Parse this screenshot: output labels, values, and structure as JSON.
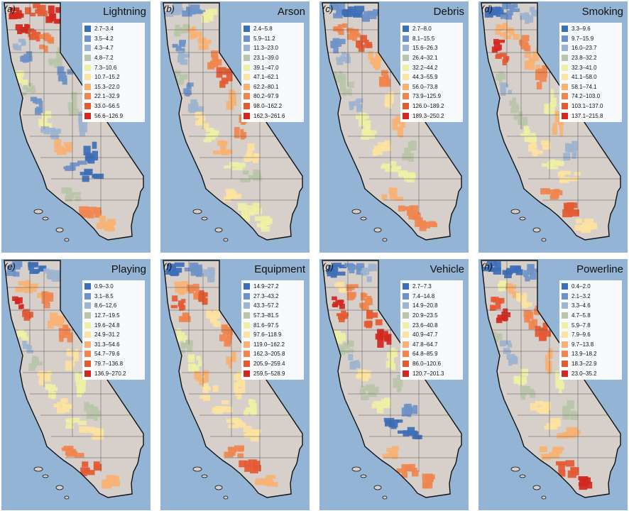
{
  "palette": [
    "#3d6fb8",
    "#6e93c8",
    "#9db4cf",
    "#b9c6a9",
    "#eef0a6",
    "#fde3a0",
    "#f7b273",
    "#f0854e",
    "#e45a33",
    "#d2281f"
  ],
  "ocean_color": "#93b4d4",
  "land_color": "#d7cfc9",
  "panels": [
    {
      "letter": "(a)",
      "title": "Lightning",
      "legend": [
        "2.7–3.4",
        "3.5–4.2",
        "4.3–4.7",
        "4.8–7.2",
        "7.3–10.6",
        "10.7–15.2",
        "15.3–22.0",
        "22.1–32.9",
        "33.0–56.5",
        "56.6–126.9"
      ]
    },
    {
      "letter": "(b)",
      "title": "Arson",
      "legend": [
        "2.4–5.8",
        "5.9–11.2",
        "11.3–23.0",
        "23.1–39.0",
        "39.1–47.0",
        "47.1–62.1",
        "62.2–80.1",
        "80.2–97.9",
        "98.0–162.2",
        "162.3–261.6"
      ]
    },
    {
      "letter": "(c)",
      "title": "Debris",
      "legend": [
        "2.7–8.0",
        "8.1–15.5",
        "15.6–26.3",
        "26.4–32.1",
        "32.2–44.2",
        "44.3–55.9",
        "56.0–73.8",
        "73.9–125.9",
        "126.0–189.2",
        "189.3–250.2"
      ]
    },
    {
      "letter": "(d)",
      "title": "Smoking",
      "legend": [
        "3.3–9.6",
        "9.7–15.9",
        "16.0–23.7",
        "23.8–32.2",
        "32.3–41.0",
        "41.1–58.0",
        "58.1–74.1",
        "74.2–103.0",
        "103.1–137.0",
        "137.1–215.8"
      ]
    },
    {
      "letter": "(e)",
      "title": "Playing",
      "legend": [
        "0.9–3.0",
        "3.1–8.5",
        "8.6–12.6",
        "12.7–19.5",
        "19.6–24.8",
        "24.9–31.2",
        "31.3–54.6",
        "54.7–79.6",
        "79.7–136.8",
        "136.9–270.2"
      ]
    },
    {
      "letter": "(f)",
      "title": "Equipment",
      "legend": [
        "14.9–27.2",
        "27.3–43.2",
        "43.3–57.2",
        "57.3–81.5",
        "81.6–97.5",
        "97.6–118.9",
        "119.0–162.2",
        "162.3–205.8",
        "205.9–259.4",
        "259.5–528.9"
      ]
    },
    {
      "letter": "(g)",
      "title": "Vehicle",
      "legend": [
        "2.7–7.3",
        "7.4–14.8",
        "14.9–20.8",
        "20.9–23.5",
        "23.6–40.8",
        "40.9–47.7",
        "47.8–64.7",
        "64.8–85.9",
        "86.0–120.6",
        "120.7–201.3"
      ]
    },
    {
      "letter": "(h)",
      "title": "Powerline",
      "legend": [
        "0.4–2.0",
        "2.1–3.2",
        "3.3–4.6",
        "4.7–5.8",
        "5.9–7.8",
        "7.9–9.6",
        "9.7–13.8",
        "13.9–18.2",
        "18.3–22.9",
        "23.0–35.2"
      ]
    }
  ],
  "region_classes": [
    [
      9,
      8,
      9,
      9,
      8,
      7,
      3,
      1,
      2,
      1,
      4,
      3,
      1,
      4,
      2,
      6,
      3,
      2,
      0,
      1,
      0,
      3,
      7,
      6
    ],
    [
      2,
      1,
      4,
      3,
      6,
      6,
      7,
      8,
      1,
      2,
      3,
      1,
      2,
      5,
      4,
      6,
      6,
      7,
      5,
      4,
      3,
      5,
      4,
      4
    ],
    [
      1,
      0,
      1,
      7,
      7,
      8,
      6,
      7,
      1,
      2,
      3,
      3,
      2,
      4,
      4,
      5,
      5,
      6,
      3,
      4,
      4,
      6,
      7,
      7
    ],
    [
      0,
      1,
      2,
      6,
      6,
      7,
      6,
      7,
      9,
      8,
      3,
      2,
      3,
      3,
      4,
      5,
      4,
      6,
      2,
      4,
      5,
      7,
      8,
      5
    ],
    [
      1,
      0,
      2,
      6,
      6,
      7,
      6,
      7,
      9,
      8,
      4,
      2,
      3,
      5,
      4,
      5,
      5,
      4,
      3,
      4,
      5,
      7,
      8,
      6
    ],
    [
      0,
      1,
      2,
      6,
      7,
      8,
      5,
      7,
      8,
      7,
      4,
      3,
      4,
      6,
      5,
      5,
      6,
      5,
      4,
      5,
      5,
      7,
      8,
      6
    ],
    [
      0,
      1,
      2,
      5,
      7,
      7,
      8,
      9,
      9,
      8,
      4,
      3,
      2,
      5,
      3,
      4,
      4,
      3,
      1,
      0,
      0,
      6,
      7,
      7
    ],
    [
      0,
      0,
      1,
      4,
      6,
      5,
      7,
      8,
      8,
      9,
      3,
      2,
      2,
      4,
      3,
      5,
      6,
      4,
      3,
      5,
      6,
      6,
      8,
      9
    ]
  ]
}
